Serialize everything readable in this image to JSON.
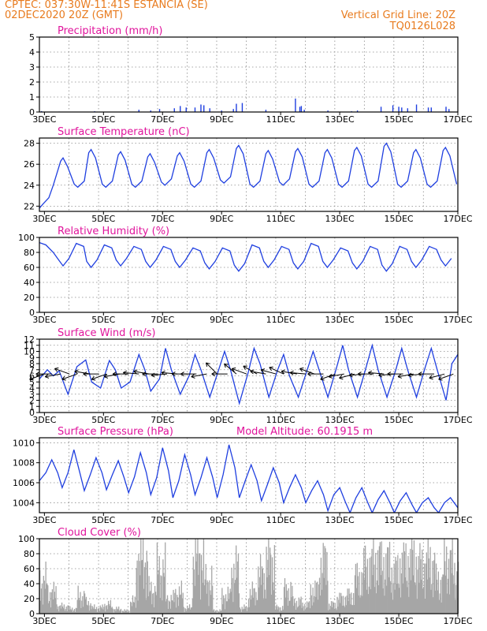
{
  "header": {
    "line1": "CPTEC:   037:30W-11:41S   ESTANCIA (SE)",
    "line2": "02DEC2020 20Z (GMT)",
    "vgrid": "Vertical Grid Line: 20Z",
    "code": "TQ0126L028"
  },
  "colors": {
    "header": "#e87b1e",
    "title": "#e0149c",
    "series": "#1f3fe0",
    "cloud": "#a6a6a6",
    "arrow": "#000000"
  },
  "x_tick_labels": [
    "3DEC",
    "5DEC",
    "7DEC",
    "9DEC",
    "11DEC",
    "13DEC",
    "15DEC",
    "17DEC"
  ],
  "chart_data": [
    {
      "type": "bar",
      "title": "Precipitation (mm/h)",
      "x": {
        "start_day": 2.83,
        "end_day": 17.0
      },
      "ylim": [
        0,
        5
      ],
      "yticks": [
        0,
        1,
        2,
        3,
        4,
        5
      ],
      "grid": true,
      "events": [
        [
          2.9,
          0.06
        ],
        [
          3.5,
          0.03
        ],
        [
          4.7,
          0.05
        ],
        [
          6.2,
          0.15
        ],
        [
          6.6,
          0.1
        ],
        [
          6.9,
          0.2
        ],
        [
          7.4,
          0.25
        ],
        [
          7.6,
          0.4
        ],
        [
          7.8,
          0.3
        ],
        [
          8.1,
          0.3
        ],
        [
          8.3,
          0.5
        ],
        [
          8.4,
          0.45
        ],
        [
          8.6,
          0.25
        ],
        [
          9.0,
          0.1
        ],
        [
          9.4,
          0.2
        ],
        [
          9.5,
          0.55
        ],
        [
          9.7,
          0.6
        ],
        [
          10.5,
          0.15
        ],
        [
          11.5,
          0.9
        ],
        [
          11.65,
          0.35
        ],
        [
          11.7,
          0.4
        ],
        [
          11.8,
          0.15
        ],
        [
          12.6,
          0.1
        ],
        [
          13.4,
          0.05
        ],
        [
          13.6,
          0.1
        ],
        [
          14.4,
          0.35
        ],
        [
          14.8,
          0.45
        ],
        [
          15.0,
          0.35
        ],
        [
          15.1,
          0.3
        ],
        [
          15.3,
          0.25
        ],
        [
          15.6,
          0.5
        ],
        [
          16.0,
          0.3
        ],
        [
          16.1,
          0.3
        ],
        [
          16.6,
          0.35
        ],
        [
          16.7,
          0.2
        ]
      ]
    },
    {
      "type": "line",
      "title": "Surface Temperature (nC)",
      "x": {
        "start_day": 2.83,
        "end_day": 17.0
      },
      "ylim": [
        21.5,
        28.5
      ],
      "yticks": [
        22,
        24,
        26,
        28
      ],
      "grid": true,
      "x_peak_days": [
        3.63,
        4.58,
        5.58,
        6.58,
        7.58,
        8.58,
        9.58,
        10.58,
        11.58,
        12.58,
        13.58,
        14.58,
        15.58,
        16.58
      ],
      "peak_values": [
        26.6,
        27.4,
        27.2,
        27.0,
        27.1,
        27.4,
        27.8,
        27.3,
        27.5,
        27.4,
        27.6,
        28.0,
        27.4,
        27.6
      ],
      "min_values": [
        23.8,
        23.8,
        23.8,
        24.0,
        23.8,
        24.2,
        23.8,
        24.0,
        23.8,
        23.8,
        23.8,
        23.8,
        23.8,
        23.8
      ]
    },
    {
      "type": "line",
      "title": "Relative Humidity (%)",
      "x": {
        "start_day": 2.83,
        "end_day": 17.0
      },
      "ylim": [
        0,
        100
      ],
      "yticks": [
        0,
        20,
        40,
        60,
        80,
        100
      ],
      "grid": true,
      "x_min_days": [
        3.63,
        4.58,
        5.58,
        6.58,
        7.58,
        8.58,
        9.58,
        10.58,
        11.58,
        12.58,
        13.58,
        14.58,
        15.58,
        16.58
      ],
      "min_values": [
        62,
        60,
        62,
        60,
        60,
        58,
        55,
        60,
        58,
        60,
        58,
        55,
        60,
        62
      ],
      "max_values": [
        92,
        90,
        88,
        88,
        86,
        86,
        90,
        88,
        92,
        86,
        88,
        88,
        88,
        88
      ]
    },
    {
      "type": "line",
      "title": "Surface Wind (m/s)",
      "x": {
        "start_day": 2.83,
        "end_day": 17.0
      },
      "ylim": [
        0,
        12
      ],
      "yticks": [
        0,
        1,
        2,
        3,
        4,
        5,
        6,
        7,
        8,
        9,
        10,
        11,
        12
      ],
      "grid": true,
      "series_points": [
        [
          2.83,
          5.5
        ],
        [
          3.1,
          7.0
        ],
        [
          3.3,
          6.0
        ],
        [
          3.5,
          6.8
        ],
        [
          3.8,
          3.0
        ],
        [
          4.1,
          7.5
        ],
        [
          4.4,
          8.6
        ],
        [
          4.6,
          5.0
        ],
        [
          4.9,
          4.0
        ],
        [
          5.2,
          8.5
        ],
        [
          5.4,
          7.0
        ],
        [
          5.6,
          4.0
        ],
        [
          5.9,
          5.0
        ],
        [
          6.2,
          9.5
        ],
        [
          6.4,
          7.0
        ],
        [
          6.6,
          3.5
        ],
        [
          6.9,
          5.5
        ],
        [
          7.1,
          10.5
        ],
        [
          7.3,
          7.0
        ],
        [
          7.6,
          3.0
        ],
        [
          7.9,
          6.0
        ],
        [
          8.1,
          9.5
        ],
        [
          8.3,
          7.0
        ],
        [
          8.6,
          2.5
        ],
        [
          8.9,
          7.0
        ],
        [
          9.1,
          10.0
        ],
        [
          9.3,
          7.0
        ],
        [
          9.6,
          1.5
        ],
        [
          9.9,
          6.5
        ],
        [
          10.1,
          10.5
        ],
        [
          10.3,
          8.0
        ],
        [
          10.6,
          2.5
        ],
        [
          10.9,
          7.0
        ],
        [
          11.1,
          9.5
        ],
        [
          11.3,
          6.0
        ],
        [
          11.6,
          2.5
        ],
        [
          11.9,
          7.0
        ],
        [
          12.1,
          10.0
        ],
        [
          12.3,
          7.0
        ],
        [
          12.6,
          2.5
        ],
        [
          12.9,
          7.5
        ],
        [
          13.1,
          11.0
        ],
        [
          13.3,
          7.0
        ],
        [
          13.6,
          2.5
        ],
        [
          13.9,
          7.5
        ],
        [
          14.1,
          11.0
        ],
        [
          14.3,
          7.0
        ],
        [
          14.6,
          2.5
        ],
        [
          14.9,
          7.0
        ],
        [
          15.1,
          10.5
        ],
        [
          15.3,
          7.0
        ],
        [
          15.6,
          2.5
        ],
        [
          15.9,
          7.5
        ],
        [
          16.1,
          10.5
        ],
        [
          16.3,
          7.0
        ],
        [
          16.6,
          2.0
        ],
        [
          16.8,
          8.0
        ],
        [
          17.0,
          9.5
        ]
      ],
      "arrow_days": [
        3.0,
        3.25,
        3.55,
        3.85,
        4.1,
        4.55,
        4.85,
        5.1,
        5.55,
        5.85,
        6.2,
        6.55,
        6.85,
        7.15,
        7.5,
        7.85,
        8.15,
        8.5,
        8.85,
        9.2,
        9.5,
        9.85,
        10.2,
        10.5,
        10.85,
        11.1,
        11.55,
        11.85,
        12.15,
        12.45,
        12.85,
        13.15,
        13.5,
        13.85,
        14.15,
        14.5,
        14.85,
        15.15,
        15.5,
        15.85,
        16.2,
        16.55,
        16.85
      ],
      "arrow_dirs_deg": [
        200,
        180,
        190,
        160,
        200,
        170,
        180,
        200,
        190,
        180,
        175,
        170,
        180,
        185,
        175,
        180,
        180,
        190,
        135,
        180,
        140,
        160,
        150,
        170,
        165,
        155,
        170,
        175,
        160,
        180,
        200,
        190,
        195,
        185,
        180,
        175,
        185,
        180,
        190,
        185,
        180,
        195,
        200
      ],
      "arrow_base_value": 6.3
    },
    {
      "type": "line",
      "title": "Surface Pressure (hPa)",
      "annotation": "Model Altitude: 60.1915 m",
      "x": {
        "start_day": 2.83,
        "end_day": 17.0
      },
      "ylim": [
        1003,
        1010.5
      ],
      "yticks": [
        1004,
        1006,
        1008,
        1010
      ],
      "grid": true,
      "series_points": [
        [
          2.83,
          1006.2
        ],
        [
          3.05,
          1007.0
        ],
        [
          3.25,
          1008.3
        ],
        [
          3.45,
          1007.0
        ],
        [
          3.6,
          1005.5
        ],
        [
          3.8,
          1007.0
        ],
        [
          4.0,
          1009.3
        ],
        [
          4.2,
          1007.0
        ],
        [
          4.35,
          1005.2
        ],
        [
          4.55,
          1006.8
        ],
        [
          4.75,
          1008.5
        ],
        [
          4.95,
          1007.0
        ],
        [
          5.1,
          1005.3
        ],
        [
          5.3,
          1006.8
        ],
        [
          5.5,
          1008.2
        ],
        [
          5.7,
          1006.5
        ],
        [
          5.85,
          1005.0
        ],
        [
          6.05,
          1006.6
        ],
        [
          6.25,
          1009.0
        ],
        [
          6.45,
          1007.0
        ],
        [
          6.6,
          1004.8
        ],
        [
          6.8,
          1006.5
        ],
        [
          7.0,
          1009.5
        ],
        [
          7.2,
          1007.2
        ],
        [
          7.35,
          1004.5
        ],
        [
          7.55,
          1006.2
        ],
        [
          7.75,
          1008.8
        ],
        [
          7.95,
          1006.8
        ],
        [
          8.1,
          1004.8
        ],
        [
          8.3,
          1006.5
        ],
        [
          8.5,
          1008.5
        ],
        [
          8.7,
          1006.5
        ],
        [
          8.85,
          1004.5
        ],
        [
          9.05,
          1006.8
        ],
        [
          9.25,
          1009.8
        ],
        [
          9.45,
          1007.5
        ],
        [
          9.6,
          1004.5
        ],
        [
          9.8,
          1006.2
        ],
        [
          10.0,
          1007.8
        ],
        [
          10.2,
          1006.2
        ],
        [
          10.35,
          1004.2
        ],
        [
          10.55,
          1005.8
        ],
        [
          10.75,
          1007.5
        ],
        [
          10.95,
          1006.0
        ],
        [
          11.1,
          1004.0
        ],
        [
          11.3,
          1005.5
        ],
        [
          11.5,
          1006.8
        ],
        [
          11.7,
          1005.5
        ],
        [
          11.85,
          1004.0
        ],
        [
          12.05,
          1005.2
        ],
        [
          12.25,
          1006.2
        ],
        [
          12.45,
          1004.8
        ],
        [
          12.6,
          1003.2
        ],
        [
          12.8,
          1004.8
        ],
        [
          13.0,
          1005.5
        ],
        [
          13.2,
          1004.0
        ],
        [
          13.35,
          1003.0
        ],
        [
          13.55,
          1004.5
        ],
        [
          13.75,
          1005.5
        ],
        [
          13.95,
          1004.0
        ],
        [
          14.1,
          1003.0
        ],
        [
          14.3,
          1004.3
        ],
        [
          14.5,
          1005.2
        ],
        [
          14.7,
          1004.0
        ],
        [
          14.85,
          1003.0
        ],
        [
          15.05,
          1004.2
        ],
        [
          15.25,
          1005.0
        ],
        [
          15.45,
          1003.8
        ],
        [
          15.6,
          1003.0
        ],
        [
          15.8,
          1004.0
        ],
        [
          16.0,
          1004.5
        ],
        [
          16.2,
          1003.5
        ],
        [
          16.35,
          1003.0
        ],
        [
          16.55,
          1004.0
        ],
        [
          16.75,
          1004.5
        ],
        [
          17.0,
          1003.5
        ]
      ]
    },
    {
      "type": "bar",
      "title": "Cloud Cover (%)",
      "x": {
        "start_day": 2.83,
        "end_day": 17.0
      },
      "ylim": [
        0,
        100
      ],
      "yticks": [
        0,
        20,
        40,
        60,
        80,
        100
      ],
      "grid": true,
      "segments": [
        [
          2.83,
          3.1,
          55
        ],
        [
          3.1,
          3.4,
          35
        ],
        [
          3.4,
          3.8,
          12
        ],
        [
          3.8,
          4.1,
          8
        ],
        [
          4.1,
          4.4,
          30
        ],
        [
          4.4,
          4.6,
          18
        ],
        [
          4.6,
          5.0,
          10
        ],
        [
          5.0,
          5.3,
          15
        ],
        [
          5.3,
          5.6,
          8
        ],
        [
          5.6,
          5.9,
          5
        ],
        [
          5.9,
          6.1,
          20
        ],
        [
          6.1,
          6.5,
          95
        ],
        [
          6.5,
          6.8,
          40
        ],
        [
          6.8,
          7.1,
          75
        ],
        [
          7.1,
          7.4,
          25
        ],
        [
          7.4,
          7.7,
          35
        ],
        [
          7.7,
          8.0,
          10
        ],
        [
          8.0,
          8.4,
          100
        ],
        [
          8.4,
          8.7,
          55
        ],
        [
          8.7,
          9.0,
          5
        ],
        [
          9.0,
          9.3,
          30
        ],
        [
          9.3,
          9.6,
          75
        ],
        [
          9.6,
          9.9,
          10
        ],
        [
          9.9,
          10.2,
          35
        ],
        [
          10.2,
          10.5,
          65
        ],
        [
          10.5,
          10.8,
          90
        ],
        [
          10.8,
          11.1,
          10
        ],
        [
          11.1,
          11.4,
          40
        ],
        [
          11.4,
          11.7,
          20
        ],
        [
          11.7,
          12.0,
          15
        ],
        [
          12.0,
          12.3,
          40
        ],
        [
          12.3,
          12.6,
          85
        ],
        [
          12.6,
          12.9,
          15
        ],
        [
          12.9,
          13.2,
          25
        ],
        [
          13.2,
          13.5,
          30
        ],
        [
          13.5,
          13.8,
          60
        ],
        [
          13.8,
          14.1,
          80
        ],
        [
          14.1,
          14.4,
          90
        ],
        [
          14.4,
          14.7,
          85
        ],
        [
          14.7,
          15.0,
          70
        ],
        [
          15.0,
          15.3,
          85
        ],
        [
          15.3,
          15.6,
          90
        ],
        [
          15.6,
          15.9,
          80
        ],
        [
          15.9,
          16.2,
          85
        ],
        [
          16.2,
          16.5,
          55
        ],
        [
          16.5,
          16.8,
          90
        ],
        [
          16.8,
          17.0,
          70
        ]
      ]
    }
  ]
}
